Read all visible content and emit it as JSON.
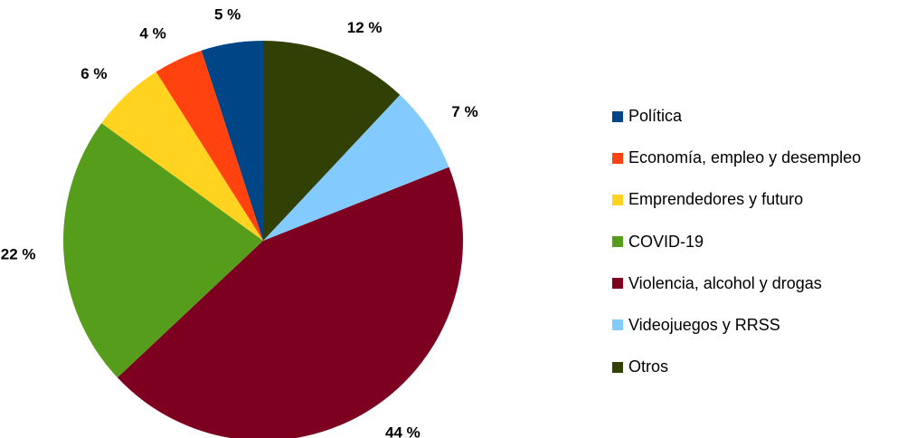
{
  "chart_data": {
    "type": "pie",
    "title": "",
    "legend_position": "right",
    "slices": [
      {
        "label": "Política",
        "value": 5,
        "display": "5 %",
        "color": "#004586"
      },
      {
        "label": "Economía, empleo y desempleo",
        "value": 4,
        "display": "4 %",
        "color": "#ff420e"
      },
      {
        "label": "Emprendedores y futuro",
        "value": 6,
        "display": "6 %",
        "color": "#ffd320"
      },
      {
        "label": "COVID-19",
        "value": 22,
        "display": "22 %",
        "color": "#579d1c"
      },
      {
        "label": "Violencia, alcohol y drogas",
        "value": 44,
        "display": "44 %",
        "color": "#7e0021"
      },
      {
        "label": "Videojuegos y RRSS",
        "value": 7,
        "display": "7 %",
        "color": "#83caff"
      },
      {
        "label": "Otros",
        "value": 12,
        "display": "12 %",
        "color": "#314004"
      }
    ]
  }
}
